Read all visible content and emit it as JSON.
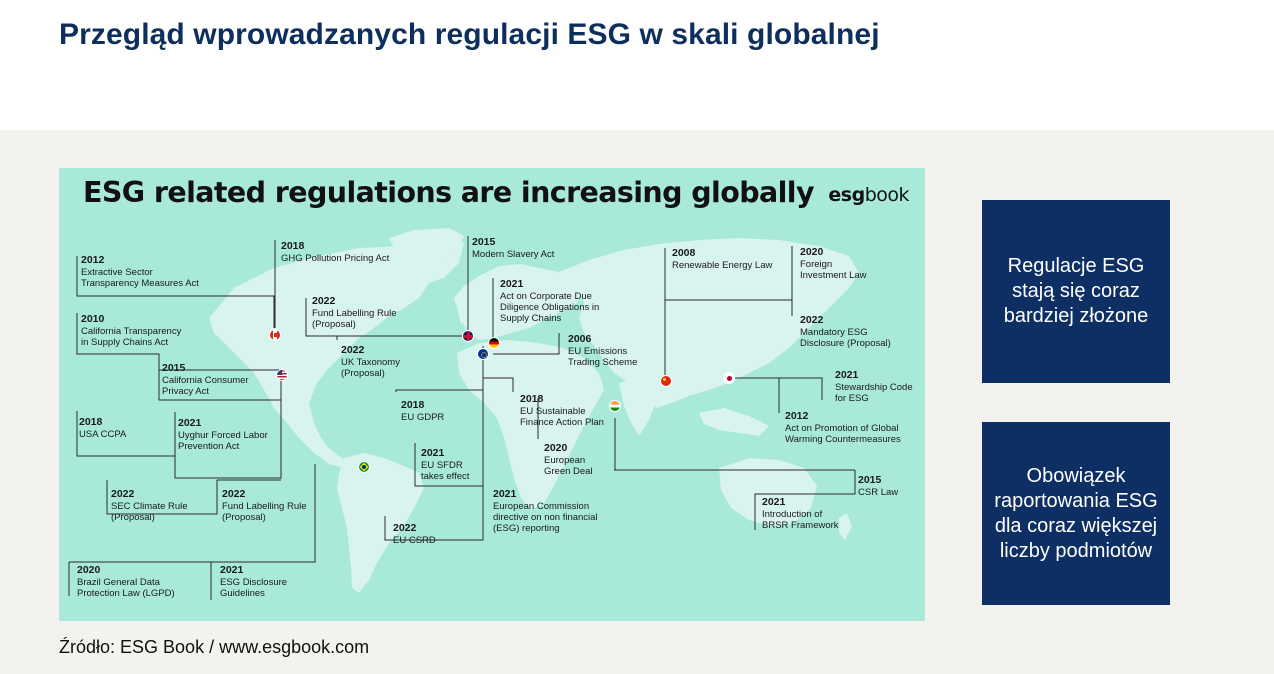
{
  "slide": {
    "title": "Przegląd wprowadzanych regulacji ESG w skali globalnej",
    "source": "Źródło: ESG Book / www.esgbook.com"
  },
  "infographic": {
    "title": "ESG related regulations are increasing globally",
    "brand_bold": "esg",
    "brand_light": "book",
    "regulations": [
      {
        "year": "2012",
        "name": "Extractive Sector\nTransparency Measures Act"
      },
      {
        "year": "2018",
        "name": "GHG Pollution Pricing Act"
      },
      {
        "year": "2015",
        "name": "Modern Slavery Act"
      },
      {
        "year": "2008",
        "name": "Renewable Energy Law"
      },
      {
        "year": "2020",
        "name": "Foreign\nInvestment Law"
      },
      {
        "year": "2021",
        "name": "Act on Corporate Due\nDiligence Obligations in\nSupply Chains"
      },
      {
        "year": "2022",
        "name": "Fund Labelling Rule\n(Proposal)"
      },
      {
        "year": "2010",
        "name": "California Transparency\nin Supply Chains Act"
      },
      {
        "year": "2022",
        "name": "Mandatory ESG\nDisclosure (Proposal)"
      },
      {
        "year": "2022",
        "name": "UK Taxonomy\n(Proposal)"
      },
      {
        "year": "2006",
        "name": "EU Emissions\nTrading Scheme"
      },
      {
        "year": "2015",
        "name": "California Consumer\nPrivacy Act"
      },
      {
        "year": "2021",
        "name": "Stewardship Code\nfor ESG"
      },
      {
        "year": "2018",
        "name": "EU GDPR"
      },
      {
        "year": "2018",
        "name": "EU Sustainable\nFinance Action Plan"
      },
      {
        "year": "2012",
        "name": "Act on Promotion of Global\nWarming Countermeasures"
      },
      {
        "year": "2018",
        "name": "USA CCPA"
      },
      {
        "year": "2021",
        "name": "Uyghur Forced Labor\nPrevention Act"
      },
      {
        "year": "2020",
        "name": "European\nGreen Deal"
      },
      {
        "year": "2021",
        "name": "EU SFDR\ntakes effect"
      },
      {
        "year": "2015",
        "name": "CSR Law"
      },
      {
        "year": "2022",
        "name": "SEC Climate Rule\n(Proposal)"
      },
      {
        "year": "2022",
        "name": "Fund Labelling Rule\n(Proposal)"
      },
      {
        "year": "2021",
        "name": "European Commission\ndirective on non financial\n(ESG) reporting"
      },
      {
        "year": "2021",
        "name": "Introduction of\nBRSR Framework"
      },
      {
        "year": "2022",
        "name": "EU CSRD"
      },
      {
        "year": "2020",
        "name": "Brazil General Data\nProtection Law (LGPD)"
      },
      {
        "year": "2021",
        "name": "ESG Disclosure\nGuidelines"
      }
    ],
    "flags": [
      "canada-flag",
      "uk-flag",
      "germany-flag",
      "eu-flag",
      "usa-flag",
      "china-flag",
      "japan-flag",
      "india-flag",
      "brazil-flag"
    ]
  },
  "side_boxes": [
    {
      "text": "Regulacje ESG stają się coraz bardziej złożone"
    },
    {
      "text": "Obowiązek raportowania ESG dla coraz większej liczby podmiotów"
    }
  ],
  "colors": {
    "title": "#0e2f5e",
    "box": "#0d2f63",
    "infographic_bg": "#a8e9da",
    "land": "#d9f3ee",
    "band": "#f3f2ee"
  }
}
